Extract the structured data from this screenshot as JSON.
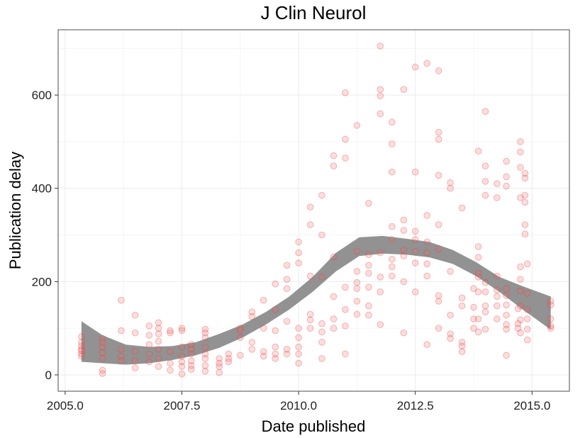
{
  "chart_data": {
    "type": "scatter",
    "title": "J Clin Neurol",
    "xlabel": "Date published",
    "ylabel": "Publication delay",
    "xlim": [
      2004.85,
      2015.8
    ],
    "ylim": [
      -35,
      740
    ],
    "x_ticks": [
      2005.0,
      2007.5,
      2010.0,
      2012.5,
      2015.0
    ],
    "x_tick_labels": [
      "2005.0",
      "2007.5",
      "2010.0",
      "2012.5",
      "2015.0"
    ],
    "y_ticks": [
      0,
      200,
      400,
      600
    ],
    "y_tick_labels": [
      "0",
      "200",
      "400",
      "600"
    ],
    "grid": true,
    "colors": {
      "points": "#e8393a",
      "band": "#8c8c8c",
      "border": "#7f7f7f"
    },
    "smooth_band": {
      "x": [
        2005.35,
        2005.8,
        2006.3,
        2006.8,
        2007.3,
        2007.8,
        2008.3,
        2008.8,
        2009.3,
        2009.8,
        2010.3,
        2010.8,
        2011.3,
        2011.8,
        2012.3,
        2012.8,
        2013.3,
        2013.8,
        2014.3,
        2014.8,
        2015.4
      ],
      "lower": [
        28,
        25,
        22,
        25,
        32,
        42,
        58,
        80,
        108,
        140,
        178,
        222,
        255,
        260,
        258,
        252,
        238,
        212,
        178,
        140,
        97
      ],
      "upper": [
        115,
        85,
        65,
        60,
        62,
        70,
        88,
        108,
        135,
        168,
        210,
        262,
        295,
        298,
        292,
        285,
        268,
        242,
        210,
        190,
        168
      ]
    },
    "points": [
      [
        2005.35,
        45
      ],
      [
        2005.35,
        55
      ],
      [
        2005.35,
        62
      ],
      [
        2005.35,
        70
      ],
      [
        2005.35,
        52
      ],
      [
        2005.35,
        82
      ],
      [
        2005.35,
        40
      ],
      [
        2005.8,
        78
      ],
      [
        2005.8,
        60
      ],
      [
        2005.8,
        48
      ],
      [
        2005.8,
        35
      ],
      [
        2005.8,
        10
      ],
      [
        2005.8,
        3
      ],
      [
        2005.8,
        70
      ],
      [
        2006.2,
        160
      ],
      [
        2006.2,
        95
      ],
      [
        2006.2,
        55
      ],
      [
        2006.2,
        40
      ],
      [
        2006.2,
        30
      ],
      [
        2006.5,
        128
      ],
      [
        2006.5,
        90
      ],
      [
        2006.5,
        50
      ],
      [
        2006.5,
        30
      ],
      [
        2006.5,
        15
      ],
      [
        2006.8,
        105
      ],
      [
        2006.8,
        85
      ],
      [
        2006.8,
        65
      ],
      [
        2006.8,
        45
      ],
      [
        2006.8,
        28
      ],
      [
        2007.0,
        112
      ],
      [
        2007.0,
        100
      ],
      [
        2007.0,
        88
      ],
      [
        2007.0,
        72
      ],
      [
        2007.0,
        55
      ],
      [
        2007.0,
        35
      ],
      [
        2007.0,
        18
      ],
      [
        2007.25,
        95
      ],
      [
        2007.25,
        90
      ],
      [
        2007.25,
        50
      ],
      [
        2007.25,
        25
      ],
      [
        2007.25,
        10
      ],
      [
        2007.5,
        100
      ],
      [
        2007.5,
        95
      ],
      [
        2007.5,
        60
      ],
      [
        2007.5,
        40
      ],
      [
        2007.5,
        28
      ],
      [
        2007.5,
        18
      ],
      [
        2007.5,
        2
      ],
      [
        2007.7,
        65
      ],
      [
        2007.7,
        55
      ],
      [
        2007.7,
        45
      ],
      [
        2007.7,
        30
      ],
      [
        2007.7,
        20
      ],
      [
        2007.7,
        12
      ],
      [
        2008.0,
        98
      ],
      [
        2008.0,
        90
      ],
      [
        2008.0,
        80
      ],
      [
        2008.0,
        60
      ],
      [
        2008.0,
        45
      ],
      [
        2008.0,
        35
      ],
      [
        2008.0,
        20
      ],
      [
        2008.0,
        8
      ],
      [
        2008.3,
        35
      ],
      [
        2008.3,
        25
      ],
      [
        2008.3,
        18
      ],
      [
        2008.3,
        5
      ],
      [
        2008.5,
        45
      ],
      [
        2008.5,
        35
      ],
      [
        2008.5,
        28
      ],
      [
        2008.75,
        100
      ],
      [
        2008.75,
        95
      ],
      [
        2008.75,
        80
      ],
      [
        2008.75,
        42
      ],
      [
        2009.0,
        135
      ],
      [
        2009.0,
        125
      ],
      [
        2009.0,
        70
      ],
      [
        2009.0,
        55
      ],
      [
        2009.25,
        160
      ],
      [
        2009.25,
        100
      ],
      [
        2009.25,
        50
      ],
      [
        2009.25,
        40
      ],
      [
        2009.5,
        195
      ],
      [
        2009.5,
        140
      ],
      [
        2009.5,
        95
      ],
      [
        2009.5,
        60
      ],
      [
        2009.5,
        45
      ],
      [
        2009.5,
        35
      ],
      [
        2009.75,
        235
      ],
      [
        2009.75,
        205
      ],
      [
        2009.75,
        185
      ],
      [
        2009.75,
        115
      ],
      [
        2009.75,
        55
      ],
      [
        2009.75,
        45
      ],
      [
        2010.0,
        285
      ],
      [
        2010.0,
        262
      ],
      [
        2010.0,
        240
      ],
      [
        2010.0,
        100
      ],
      [
        2010.0,
        80
      ],
      [
        2010.0,
        60
      ],
      [
        2010.0,
        45
      ],
      [
        2010.0,
        25
      ],
      [
        2010.25,
        360
      ],
      [
        2010.25,
        322
      ],
      [
        2010.25,
        212
      ],
      [
        2010.25,
        130
      ],
      [
        2010.25,
        118
      ],
      [
        2010.25,
        100
      ],
      [
        2010.5,
        385
      ],
      [
        2010.5,
        300
      ],
      [
        2010.5,
        210
      ],
      [
        2010.5,
        110
      ],
      [
        2010.5,
        92
      ],
      [
        2010.5,
        70
      ],
      [
        2010.5,
        35
      ],
      [
        2010.75,
        470
      ],
      [
        2010.75,
        448
      ],
      [
        2010.75,
        253
      ],
      [
        2010.75,
        168
      ],
      [
        2010.75,
        120
      ],
      [
        2010.75,
        100
      ],
      [
        2011.0,
        605
      ],
      [
        2011.0,
        505
      ],
      [
        2011.0,
        465
      ],
      [
        2011.0,
        188
      ],
      [
        2011.0,
        140
      ],
      [
        2011.0,
        105
      ],
      [
        2011.0,
        45
      ],
      [
        2011.25,
        535
      ],
      [
        2011.25,
        265
      ],
      [
        2011.25,
        222
      ],
      [
        2011.25,
        198
      ],
      [
        2011.25,
        185
      ],
      [
        2011.25,
        158
      ],
      [
        2011.25,
        130
      ],
      [
        2011.5,
        368
      ],
      [
        2011.5,
        258
      ],
      [
        2011.5,
        235
      ],
      [
        2011.5,
        218
      ],
      [
        2011.5,
        188
      ],
      [
        2011.5,
        148
      ],
      [
        2011.5,
        128
      ],
      [
        2011.75,
        705
      ],
      [
        2011.75,
        612
      ],
      [
        2011.75,
        598
      ],
      [
        2011.75,
        560
      ],
      [
        2011.75,
        262
      ],
      [
        2011.75,
        210
      ],
      [
        2011.75,
        178
      ],
      [
        2011.75,
        108
      ],
      [
        2012.0,
        542
      ],
      [
        2012.0,
        495
      ],
      [
        2012.0,
        435
      ],
      [
        2012.0,
        318
      ],
      [
        2012.0,
        290
      ],
      [
        2012.0,
        248
      ],
      [
        2012.0,
        232
      ],
      [
        2012.0,
        212
      ],
      [
        2012.25,
        612
      ],
      [
        2012.25,
        332
      ],
      [
        2012.25,
        310
      ],
      [
        2012.25,
        268
      ],
      [
        2012.25,
        255
      ],
      [
        2012.25,
        200
      ],
      [
        2012.25,
        90
      ],
      [
        2012.5,
        660
      ],
      [
        2012.5,
        435
      ],
      [
        2012.5,
        308
      ],
      [
        2012.5,
        290
      ],
      [
        2012.5,
        265
      ],
      [
        2012.5,
        240
      ],
      [
        2012.5,
        178
      ],
      [
        2012.75,
        668
      ],
      [
        2012.75,
        342
      ],
      [
        2012.75,
        285
      ],
      [
        2012.75,
        262
      ],
      [
        2012.75,
        238
      ],
      [
        2012.75,
        212
      ],
      [
        2012.75,
        65
      ],
      [
        2013.0,
        652
      ],
      [
        2013.0,
        520
      ],
      [
        2013.0,
        505
      ],
      [
        2013.0,
        428
      ],
      [
        2013.0,
        322
      ],
      [
        2013.0,
        270
      ],
      [
        2013.0,
        170
      ],
      [
        2013.0,
        158
      ],
      [
        2013.0,
        100
      ],
      [
        2013.25,
        412
      ],
      [
        2013.25,
        400
      ],
      [
        2013.25,
        222
      ],
      [
        2013.25,
        128
      ],
      [
        2013.25,
        88
      ],
      [
        2013.25,
        78
      ],
      [
        2013.5,
        358
      ],
      [
        2013.5,
        165
      ],
      [
        2013.5,
        148
      ],
      [
        2013.5,
        70
      ],
      [
        2013.5,
        62
      ],
      [
        2013.5,
        50
      ],
      [
        2013.75,
        185
      ],
      [
        2013.75,
        145
      ],
      [
        2013.75,
        120
      ],
      [
        2013.75,
        100
      ],
      [
        2013.85,
        480
      ],
      [
        2013.85,
        275
      ],
      [
        2013.85,
        252
      ],
      [
        2013.85,
        218
      ],
      [
        2013.85,
        210
      ],
      [
        2013.85,
        178
      ],
      [
        2013.85,
        120
      ],
      [
        2013.85,
        92
      ],
      [
        2014.0,
        565
      ],
      [
        2014.0,
        448
      ],
      [
        2014.0,
        415
      ],
      [
        2014.0,
        385
      ],
      [
        2014.0,
        198
      ],
      [
        2014.0,
        178
      ],
      [
        2014.0,
        148
      ],
      [
        2014.0,
        135
      ],
      [
        2014.0,
        98
      ],
      [
        2014.25,
        410
      ],
      [
        2014.25,
        380
      ],
      [
        2014.25,
        212
      ],
      [
        2014.25,
        182
      ],
      [
        2014.25,
        168
      ],
      [
        2014.25,
        148
      ],
      [
        2014.25,
        120
      ],
      [
        2014.45,
        458
      ],
      [
        2014.45,
        425
      ],
      [
        2014.45,
        405
      ],
      [
        2014.45,
        185
      ],
      [
        2014.45,
        170
      ],
      [
        2014.45,
        150
      ],
      [
        2014.45,
        128
      ],
      [
        2014.45,
        108
      ],
      [
        2014.45,
        98
      ],
      [
        2014.45,
        42
      ],
      [
        2014.7,
        142
      ],
      [
        2014.7,
        110
      ],
      [
        2014.7,
        100
      ],
      [
        2014.75,
        500
      ],
      [
        2014.75,
        478
      ],
      [
        2014.75,
        445
      ],
      [
        2014.75,
        380
      ],
      [
        2014.75,
        232
      ],
      [
        2014.75,
        205
      ],
      [
        2014.75,
        180
      ],
      [
        2014.75,
        148
      ],
      [
        2014.75,
        118
      ],
      [
        2014.75,
        90
      ],
      [
        2014.85,
        432
      ],
      [
        2014.85,
        422
      ],
      [
        2014.85,
        385
      ],
      [
        2014.85,
        370
      ],
      [
        2014.85,
        322
      ],
      [
        2014.85,
        302
      ],
      [
        2014.9,
        238
      ],
      [
        2014.9,
        175
      ],
      [
        2014.9,
        140
      ],
      [
        2014.9,
        120
      ],
      [
        2014.9,
        98
      ],
      [
        2014.9,
        75
      ],
      [
        2015.4,
        158
      ],
      [
        2015.4,
        150
      ],
      [
        2015.4,
        120
      ],
      [
        2015.4,
        105
      ],
      [
        2015.4,
        100
      ]
    ]
  }
}
